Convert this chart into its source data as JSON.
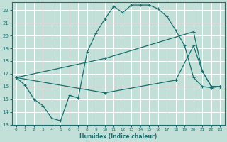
{
  "xlabel": "Humidex (Indice chaleur)",
  "bg_color": "#c2e0d8",
  "grid_color": "#ffffff",
  "line_color": "#1a6e6e",
  "xlim": [
    -0.5,
    23.5
  ],
  "ylim": [
    13,
    22.6
  ],
  "yticks": [
    13,
    14,
    15,
    16,
    17,
    18,
    19,
    20,
    21,
    22
  ],
  "xticks": [
    0,
    1,
    2,
    3,
    4,
    5,
    6,
    7,
    8,
    9,
    10,
    11,
    12,
    13,
    14,
    15,
    16,
    17,
    18,
    19,
    20,
    21,
    22,
    23
  ],
  "line1_x": [
    0,
    1,
    2,
    3,
    4,
    5,
    6,
    7,
    8,
    9,
    10,
    11,
    12,
    13,
    14,
    15,
    16,
    17,
    18,
    19,
    20,
    21,
    22,
    23
  ],
  "line1_y": [
    16.7,
    16.1,
    15.0,
    14.5,
    13.5,
    13.3,
    15.3,
    15.1,
    18.7,
    20.2,
    21.3,
    22.3,
    21.8,
    22.4,
    22.4,
    22.4,
    22.1,
    21.5,
    20.4,
    19.2,
    16.7,
    16.0,
    15.9,
    16.0
  ],
  "line2_x": [
    0,
    10,
    20,
    21,
    22,
    23
  ],
  "line2_y": [
    16.7,
    18.2,
    20.3,
    17.2,
    16.0,
    16.0
  ],
  "line3_x": [
    0,
    10,
    18,
    20,
    21,
    22,
    23
  ],
  "line3_y": [
    16.7,
    15.5,
    16.5,
    19.2,
    17.2,
    16.0,
    16.0
  ]
}
